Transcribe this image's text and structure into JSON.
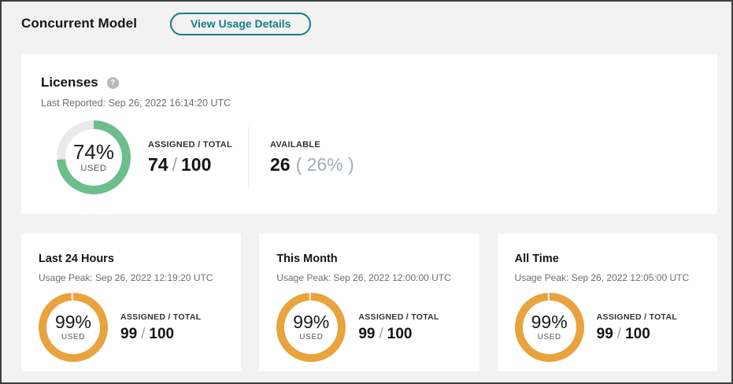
{
  "header": {
    "title": "Concurrent Model",
    "view_usage_details_label": "View Usage Details"
  },
  "colors": {
    "accent_teal": "#177A8A",
    "donut_green": "#6CBE8C",
    "donut_orange": "#E9A33D",
    "donut_track": "#E9E9E9"
  },
  "licenses": {
    "title": "Licenses",
    "help_glyph": "?",
    "last_reported": "Last Reported: Sep 26, 2022 16:14:20 UTC",
    "donut": {
      "pct": 74,
      "color": "#6CBE8C",
      "label_value": "74%",
      "label_caption": "USED"
    },
    "assigned_total": {
      "label": "ASSIGNED / TOTAL",
      "assigned": "74",
      "separator": "/",
      "total": "100"
    },
    "available": {
      "label": "AVAILABLE",
      "value": "26",
      "pct_text": "( 26% )"
    }
  },
  "usage_cards": [
    {
      "title": "Last 24 Hours",
      "usage_peak": "Usage Peak: Sep 26, 2022 12:19:20 UTC",
      "donut": {
        "pct": 99,
        "color": "#E9A33D",
        "label_value": "99%",
        "label_caption": "USED"
      },
      "assigned_total": {
        "label": "ASSIGNED / TOTAL",
        "assigned": "99",
        "separator": "/",
        "total": "100"
      }
    },
    {
      "title": "This Month",
      "usage_peak": "Usage Peak: Sep 26, 2022 12:00:00 UTC",
      "donut": {
        "pct": 99,
        "color": "#E9A33D",
        "label_value": "99%",
        "label_caption": "USED"
      },
      "assigned_total": {
        "label": "ASSIGNED / TOTAL",
        "assigned": "99",
        "separator": "/",
        "total": "100"
      }
    },
    {
      "title": "All Time",
      "usage_peak": "Usage Peak: Sep 26, 2022 12:05:00 UTC",
      "donut": {
        "pct": 99,
        "color": "#E9A33D",
        "label_value": "99%",
        "label_caption": "USED"
      },
      "assigned_total": {
        "label": "ASSIGNED / TOTAL",
        "assigned": "99",
        "separator": "/",
        "total": "100"
      }
    }
  ]
}
